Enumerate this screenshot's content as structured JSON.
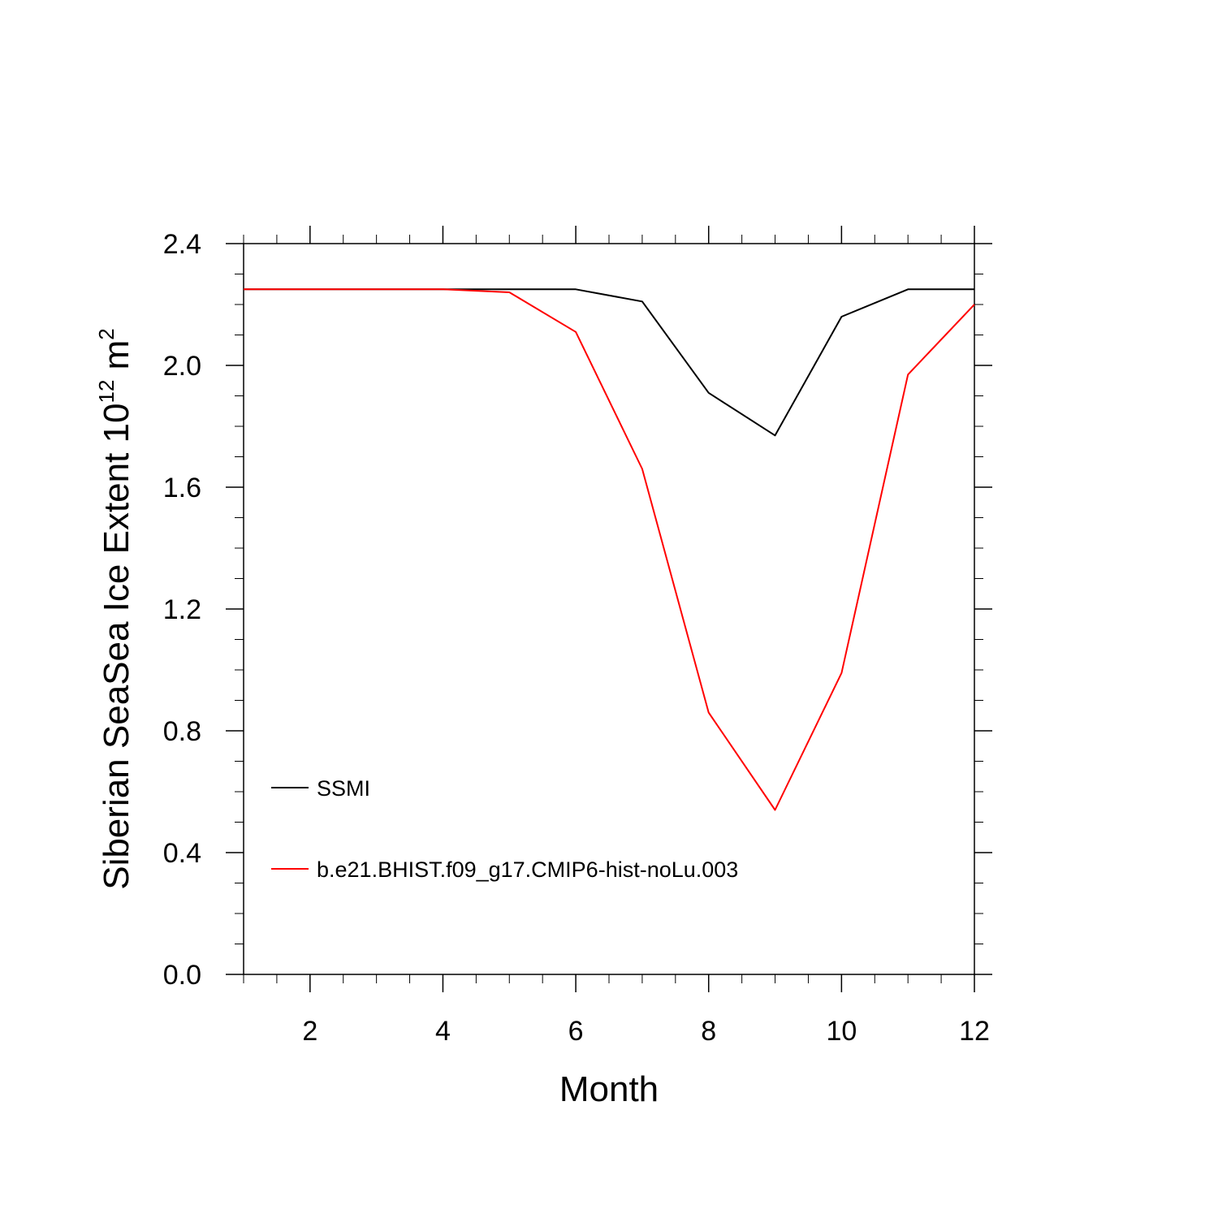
{
  "chart_data": {
    "type": "line",
    "title": "",
    "xlabel": "Month",
    "ylabel": "Siberian SeaSea Ice Extent 10",
    "ylabel_sup1": "12",
    "ylabel_unit": " m",
    "ylabel_sup2": "2",
    "xlim": [
      1,
      12
    ],
    "ylim": [
      0,
      2.4
    ],
    "x_ticks": [
      2,
      4,
      6,
      8,
      10,
      12
    ],
    "x_tick_labels": [
      "2",
      "4",
      "6",
      "8",
      "10",
      "12"
    ],
    "y_ticks": [
      0,
      0.4,
      0.8,
      1.2,
      1.6,
      2.0,
      2.4
    ],
    "y_tick_labels": [
      "0.0",
      "0.4",
      "0.8",
      "1.2",
      "1.6",
      "2.0",
      "2.4"
    ],
    "x": [
      1,
      2,
      3,
      4,
      5,
      6,
      7,
      8,
      9,
      10,
      11,
      12
    ],
    "legend_position": "bottom-left",
    "grid": false,
    "series": [
      {
        "name": "SSMI",
        "color": "#000000",
        "values": [
          2.25,
          2.25,
          2.25,
          2.25,
          2.25,
          2.25,
          2.21,
          1.91,
          1.77,
          2.16,
          2.25,
          2.25
        ]
      },
      {
        "name": "b.e21.BHIST.f09_g17.CMIP6-hist-noLu.003",
        "color": "#ff0000",
        "values": [
          2.25,
          2.25,
          2.25,
          2.25,
          2.24,
          2.11,
          1.66,
          0.86,
          0.54,
          0.99,
          1.97,
          2.2
        ]
      }
    ]
  }
}
